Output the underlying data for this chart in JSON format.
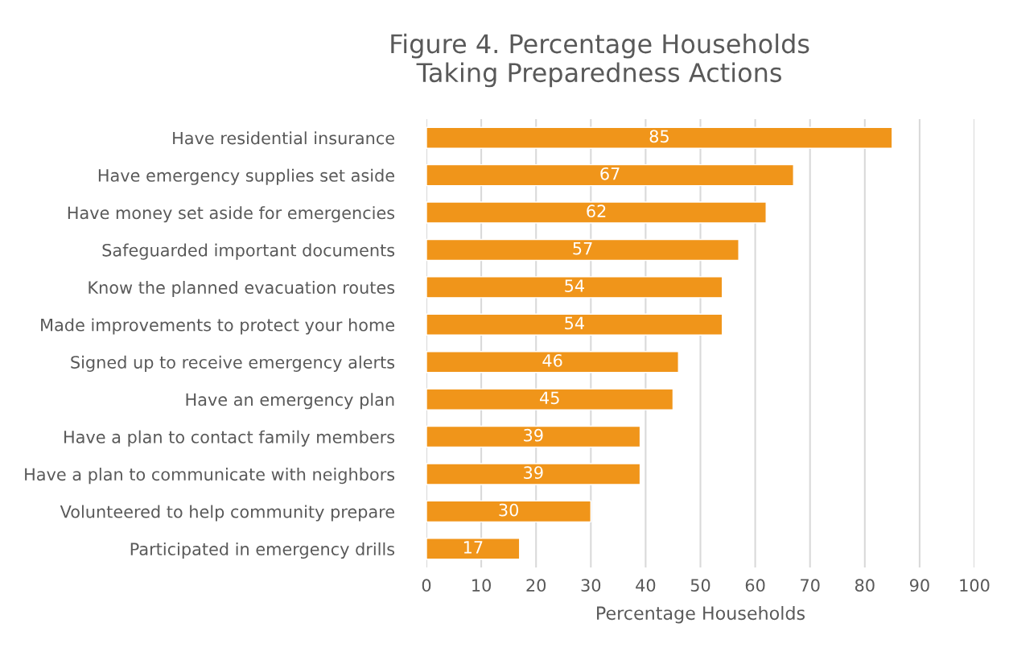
{
  "chart_data": {
    "type": "bar",
    "orientation": "horizontal",
    "title": "Figure 4. Percentage Households\nTaking Preparedness Actions",
    "xlabel": "Percentage Households",
    "categories": [
      "Have residential insurance",
      "Have emergency supplies set aside",
      "Have money set aside for emergencies",
      "Safeguarded important documents",
      "Know the planned evacuation routes",
      "Made improvements to protect your home",
      "Signed up to receive emergency alerts",
      "Have an emergency plan",
      "Have a plan to contact family members",
      "Have a plan to communicate with neighbors",
      "Volunteered to help community prepare",
      "Participated in emergency drills"
    ],
    "values": [
      85,
      67,
      62,
      57,
      54,
      54,
      46,
      45,
      39,
      39,
      30,
      17
    ],
    "color": "#f0951a",
    "data_labels": true,
    "grid": "x",
    "legend": false,
    "xlim": [
      0,
      100
    ],
    "xticks": [
      0,
      10,
      20,
      30,
      40,
      50,
      60,
      70,
      80,
      90,
      100
    ]
  }
}
